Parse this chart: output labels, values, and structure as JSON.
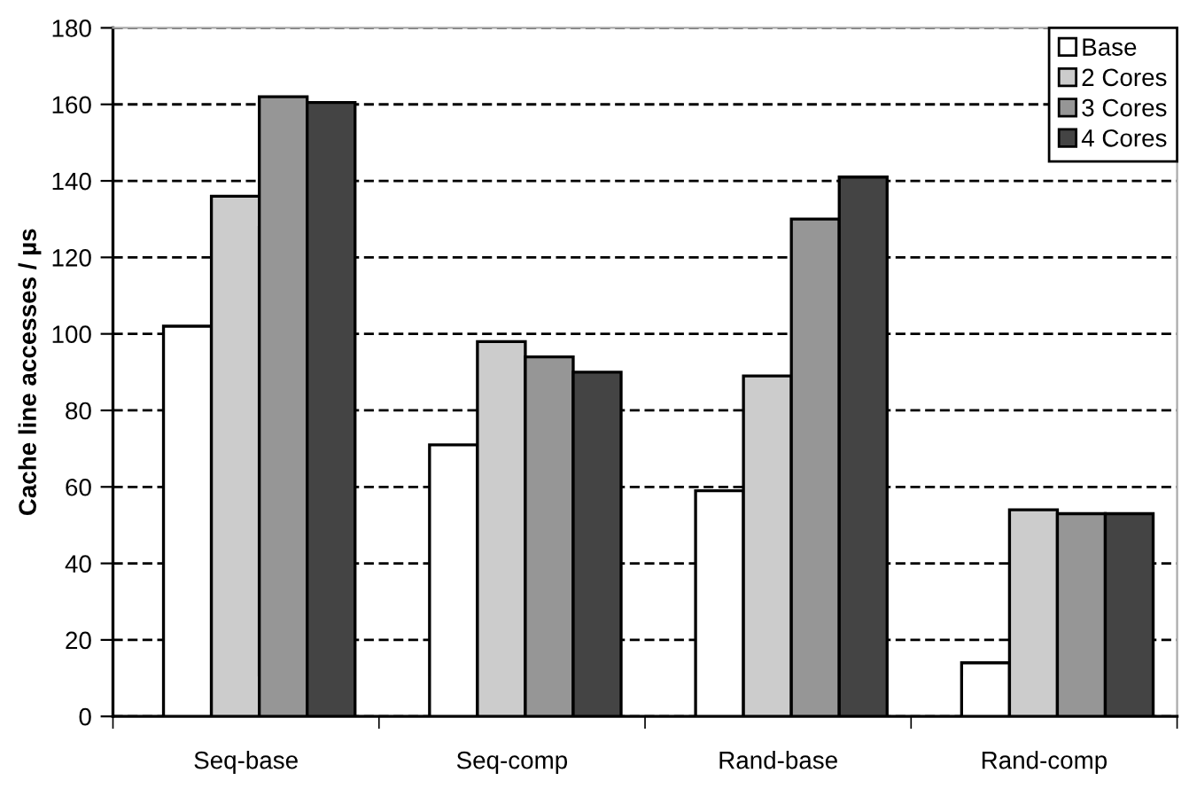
{
  "chart_data": {
    "type": "bar",
    "ylabel": "Cache line accesses / µs",
    "categories": [
      "Seq-base",
      "Seq-comp",
      "Rand-base",
      "Rand-comp"
    ],
    "series": [
      {
        "name": "Base",
        "color": "#ffffff",
        "values": [
          102,
          71,
          59,
          14
        ]
      },
      {
        "name": "2 Cores",
        "color": "#cccccc",
        "values": [
          136,
          98,
          89,
          54
        ]
      },
      {
        "name": "3 Cores",
        "color": "#969696",
        "values": [
          162,
          94,
          130,
          53
        ]
      },
      {
        "name": "4 Cores",
        "color": "#444444",
        "values": [
          160.5,
          90,
          141,
          53
        ]
      }
    ],
    "ylim": [
      0,
      180
    ],
    "yticks": [
      0,
      20,
      40,
      60,
      80,
      100,
      120,
      140,
      160,
      180
    ],
    "grid": "y",
    "legend": "top right"
  }
}
